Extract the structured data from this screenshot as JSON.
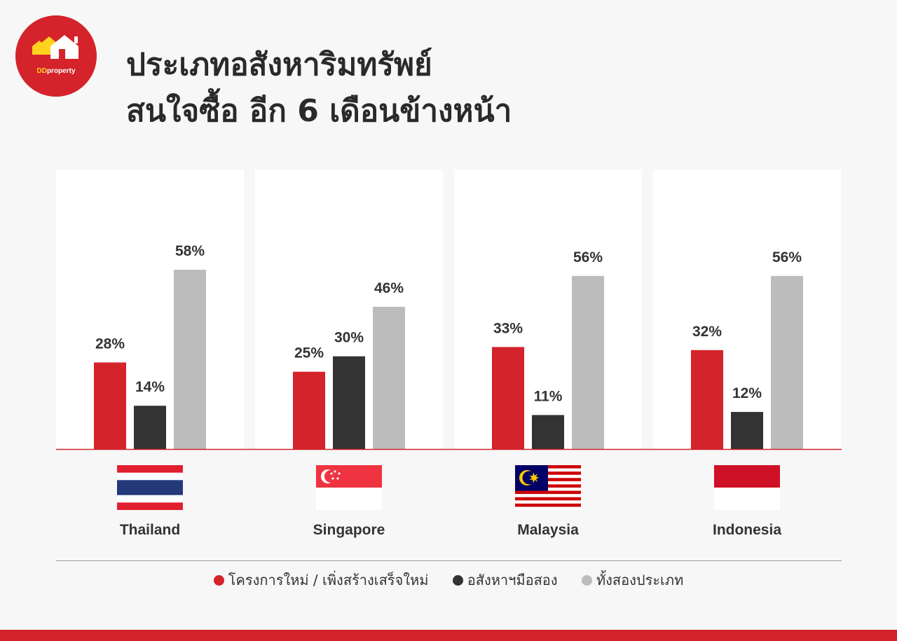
{
  "brand": {
    "logo_dd": "DD",
    "logo_rest": "property"
  },
  "title": {
    "line1": "ประเภทอสังหาริมทรัพย์",
    "line2": "สนใจซื้อ อีก 6 เดือนข้างหน้า"
  },
  "colors": {
    "new": "#d4232a",
    "resale": "#333333",
    "both": "#bcbcbc",
    "brand": "#d4232a"
  },
  "chart_data": {
    "type": "bar",
    "title": "ประเภทอสังหาริมทรัพย์ สนใจซื้อ อีก 6 เดือนข้างหน้า",
    "categories": [
      "Thailand",
      "Singapore",
      "Malaysia",
      "Indonesia"
    ],
    "series": [
      {
        "name": "โครงการใหม่ / เพิ่งสร้างเสร็จใหม่",
        "values": [
          28,
          25,
          33,
          32
        ],
        "color": "#d4232a"
      },
      {
        "name": "อสังหาฯมือสอง",
        "values": [
          14,
          30,
          11,
          12
        ],
        "color": "#333333"
      },
      {
        "name": "ทั้งสองประเภท",
        "values": [
          58,
          46,
          56,
          56
        ],
        "color": "#bcbcbc"
      }
    ],
    "value_suffix": "%",
    "ylim": [
      0,
      100
    ],
    "grid": false,
    "legend_position": "bottom"
  },
  "countries": [
    {
      "name": "Thailand",
      "flag": "thailand-flag"
    },
    {
      "name": "Singapore",
      "flag": "singapore-flag"
    },
    {
      "name": "Malaysia",
      "flag": "malaysia-flag"
    },
    {
      "name": "Indonesia",
      "flag": "indonesia-flag"
    }
  ],
  "legend": [
    {
      "label": "โครงการใหม่ / เพิ่งสร้างเสร็จใหม่",
      "color": "#d4232a"
    },
    {
      "label": "อสังหาฯมือสอง",
      "color": "#333333"
    },
    {
      "label": "ทั้งสองประเภท",
      "color": "#bcbcbc"
    }
  ]
}
